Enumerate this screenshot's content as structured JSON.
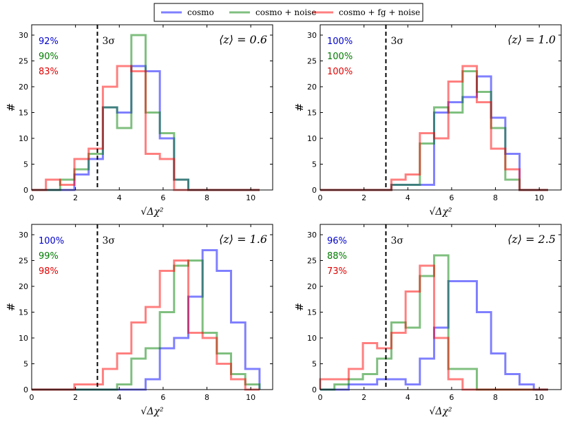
{
  "legend": {
    "entries": [
      {
        "label": "cosmo",
        "color": "#0000ff"
      },
      {
        "label": "cosmo + noise",
        "color": "#008000"
      },
      {
        "label": "cosmo + fg + noise",
        "color": "#ff0000"
      }
    ]
  },
  "chart_data": [
    {
      "type": "histogram",
      "annotation": "⟨z⟩ = 0.6",
      "sigma_label": "3σ",
      "sigma_x": 3,
      "xlabel": "√Δχ²",
      "ylabel": "#",
      "xlim": [
        0,
        11
      ],
      "ylim": [
        0,
        32
      ],
      "xticks": [
        0,
        2,
        4,
        6,
        8,
        10
      ],
      "yticks": [
        0,
        5,
        10,
        15,
        20,
        25,
        30
      ],
      "bin_edges": [
        0,
        0.65,
        1.3,
        1.95,
        2.6,
        3.25,
        3.9,
        4.55,
        5.2,
        5.85,
        6.5,
        7.15,
        7.8,
        8.45,
        9.1,
        9.75,
        10.4
      ],
      "series": [
        {
          "name": "cosmo",
          "percent": "92%",
          "counts": [
            0,
            0,
            0,
            3,
            6,
            16,
            15,
            24,
            23,
            10,
            2,
            0,
            0,
            0,
            0,
            0
          ]
        },
        {
          "name": "cosmo + noise",
          "percent": "90%",
          "counts": [
            0,
            0,
            2,
            4,
            7,
            16,
            12,
            30,
            15,
            11,
            2,
            0,
            0,
            0,
            0,
            0
          ]
        },
        {
          "name": "cosmo + fg + noise",
          "percent": "83%",
          "counts": [
            0,
            2,
            1,
            6,
            8,
            20,
            24,
            23,
            7,
            6,
            0,
            0,
            0,
            0,
            0,
            0
          ]
        }
      ]
    },
    {
      "type": "histogram",
      "annotation": "⟨z⟩ = 1.0",
      "sigma_label": "3σ",
      "sigma_x": 3,
      "xlabel": "√Δχ²",
      "ylabel": "#",
      "xlim": [
        0,
        11
      ],
      "ylim": [
        0,
        32
      ],
      "xticks": [
        0,
        2,
        4,
        6,
        8,
        10
      ],
      "yticks": [
        0,
        5,
        10,
        15,
        20,
        25,
        30
      ],
      "bin_edges": [
        0,
        0.65,
        1.3,
        1.95,
        2.6,
        3.25,
        3.9,
        4.55,
        5.2,
        5.85,
        6.5,
        7.15,
        7.8,
        8.45,
        9.1,
        9.75,
        10.4
      ],
      "series": [
        {
          "name": "cosmo",
          "percent": "100%",
          "counts": [
            0,
            0,
            0,
            0,
            0,
            1,
            1,
            1,
            15,
            17,
            18,
            22,
            14,
            7,
            0,
            0
          ]
        },
        {
          "name": "cosmo + noise",
          "percent": "100%",
          "counts": [
            0,
            0,
            0,
            0,
            0,
            1,
            1,
            9,
            16,
            15,
            23,
            19,
            12,
            2,
            0,
            0
          ]
        },
        {
          "name": "cosmo + fg + noise",
          "percent": "100%",
          "counts": [
            0,
            0,
            0,
            0,
            0,
            2,
            3,
            11,
            10,
            21,
            24,
            17,
            8,
            4,
            0,
            0
          ]
        }
      ]
    },
    {
      "type": "histogram",
      "annotation": "⟨z⟩ = 1.6",
      "sigma_label": "3σ",
      "sigma_x": 3,
      "xlabel": "√Δχ²",
      "ylabel": "#",
      "xlim": [
        0,
        11
      ],
      "ylim": [
        0,
        32
      ],
      "xticks": [
        0,
        2,
        4,
        6,
        8,
        10
      ],
      "yticks": [
        0,
        5,
        10,
        15,
        20,
        25,
        30
      ],
      "bin_edges": [
        0,
        0.65,
        1.3,
        1.95,
        2.6,
        3.25,
        3.9,
        4.55,
        5.2,
        5.85,
        6.5,
        7.15,
        7.8,
        8.45,
        9.1,
        9.75,
        10.4
      ],
      "series": [
        {
          "name": "cosmo",
          "percent": "100%",
          "counts": [
            0,
            0,
            0,
            0,
            0,
            0,
            0,
            0,
            2,
            8,
            10,
            18,
            27,
            23,
            13,
            4
          ]
        },
        {
          "name": "cosmo + noise",
          "percent": "99%",
          "counts": [
            0,
            0,
            0,
            0,
            0,
            0,
            1,
            6,
            8,
            15,
            24,
            25,
            11,
            7,
            3,
            1
          ]
        },
        {
          "name": "cosmo + fg + noise",
          "percent": "98%",
          "counts": [
            0,
            0,
            0,
            1,
            1,
            4,
            7,
            13,
            16,
            23,
            25,
            11,
            10,
            5,
            2,
            0
          ]
        }
      ]
    },
    {
      "type": "histogram",
      "annotation": "⟨z⟩ = 2.5",
      "sigma_label": "3σ",
      "sigma_x": 3,
      "xlabel": "√Δχ²",
      "ylabel": "#",
      "xlim": [
        0,
        11
      ],
      "ylim": [
        0,
        32
      ],
      "xticks": [
        0,
        2,
        4,
        6,
        8,
        10
      ],
      "yticks": [
        0,
        5,
        10,
        15,
        20,
        25,
        30
      ],
      "bin_edges": [
        0,
        0.65,
        1.3,
        1.95,
        2.6,
        3.25,
        3.9,
        4.55,
        5.2,
        5.85,
        6.5,
        7.15,
        7.8,
        8.45,
        9.1,
        9.75,
        10.4
      ],
      "series": [
        {
          "name": "cosmo",
          "percent": "96%",
          "counts": [
            0,
            0,
            1,
            1,
            2,
            2,
            1,
            6,
            12,
            21,
            21,
            15,
            7,
            3,
            1,
            0
          ]
        },
        {
          "name": "cosmo + noise",
          "percent": "88%",
          "counts": [
            0,
            1,
            2,
            3,
            6,
            13,
            12,
            22,
            26,
            4,
            4,
            0,
            0,
            0,
            0,
            0
          ]
        },
        {
          "name": "cosmo + fg + noise",
          "percent": "73%",
          "counts": [
            2,
            2,
            4,
            9,
            8,
            11,
            19,
            24,
            10,
            2,
            0,
            0,
            0,
            0,
            0,
            0
          ]
        }
      ]
    }
  ]
}
